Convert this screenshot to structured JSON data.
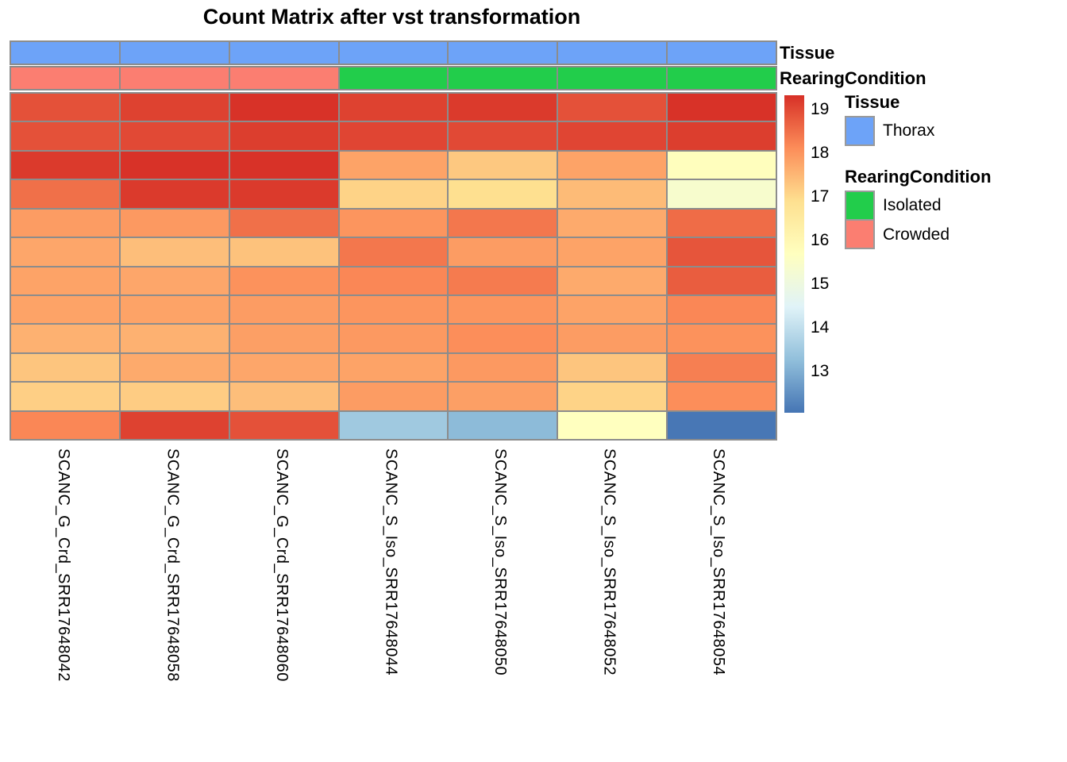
{
  "title": "Count Matrix after vst transformation",
  "annotations": [
    {
      "name": "Tissue",
      "values": [
        "Thorax",
        "Thorax",
        "Thorax",
        "Thorax",
        "Thorax",
        "Thorax",
        "Thorax"
      ],
      "colors": {
        "Thorax": "#6DA3F8"
      }
    },
    {
      "name": "RearingCondition",
      "values": [
        "Crowded",
        "Crowded",
        "Crowded",
        "Isolated",
        "Isolated",
        "Isolated",
        "Isolated"
      ],
      "colors": {
        "Crowded": "#FB7E71",
        "Isolated": "#22CD4B"
      }
    }
  ],
  "legend": {
    "groups": [
      {
        "header": "Tissue",
        "items": [
          {
            "label": "Thorax",
            "color": "#6DA3F8"
          }
        ]
      },
      {
        "header": "RearingCondition",
        "items": [
          {
            "label": "Isolated",
            "color": "#22CD4B"
          },
          {
            "label": "Crowded",
            "color": "#FB7E71"
          }
        ]
      }
    ]
  },
  "colorbar": {
    "ticks": [
      19,
      18,
      17,
      16,
      15,
      14,
      13
    ],
    "domain": [
      12.06,
      19.33
    ],
    "anchors": [
      "#4575B4",
      "#91BFDB",
      "#E0F3F8",
      "#FFFFBF",
      "#FEE090",
      "#FC8D59",
      "#D73027"
    ]
  },
  "style": {
    "grid_color": "#8C8C8C",
    "text_color": "#000000"
  },
  "chart_data": {
    "type": "heatmap",
    "title": "Count Matrix after vst transformation",
    "columns": [
      "SCANC_G_Crd_SRR17648042",
      "SCANC_G_Crd_SRR17648058",
      "SCANC_G_Crd_SRR17648060",
      "SCANC_S_Iso_SRR17648044",
      "SCANC_S_Iso_SRR17648050",
      "SCANC_S_Iso_SRR17648052",
      "SCANC_S_Iso_SRR17648054"
    ],
    "value_scale": "vst counts, color scale 13-19 (RdYlBu reversed)",
    "values": [
      [
        18.9,
        19.1,
        19.3,
        19.1,
        19.2,
        18.9,
        19.3
      ],
      [
        18.9,
        19.0,
        19.15,
        19.05,
        19.0,
        19.05,
        19.15
      ],
      [
        19.2,
        19.3,
        19.3,
        17.8,
        17.25,
        17.8,
        15.75
      ],
      [
        18.5,
        19.2,
        19.2,
        17.1,
        16.9,
        17.45,
        15.4
      ],
      [
        17.9,
        17.95,
        18.5,
        18.0,
        18.4,
        17.7,
        18.55
      ],
      [
        17.75,
        17.4,
        17.35,
        18.4,
        17.9,
        17.8,
        18.85
      ],
      [
        17.8,
        17.75,
        18.05,
        18.2,
        18.35,
        17.7,
        18.75
      ],
      [
        17.8,
        17.8,
        17.9,
        18.0,
        18.0,
        17.8,
        18.2
      ],
      [
        17.6,
        17.6,
        17.85,
        17.95,
        18.1,
        17.9,
        18.05
      ],
      [
        17.3,
        17.7,
        17.75,
        17.8,
        17.95,
        17.3,
        18.3
      ],
      [
        17.15,
        17.2,
        17.4,
        17.9,
        17.85,
        17.1,
        18.1
      ],
      [
        18.2,
        19.1,
        18.9,
        13.5,
        13.2,
        15.7,
        12.1
      ]
    ]
  }
}
